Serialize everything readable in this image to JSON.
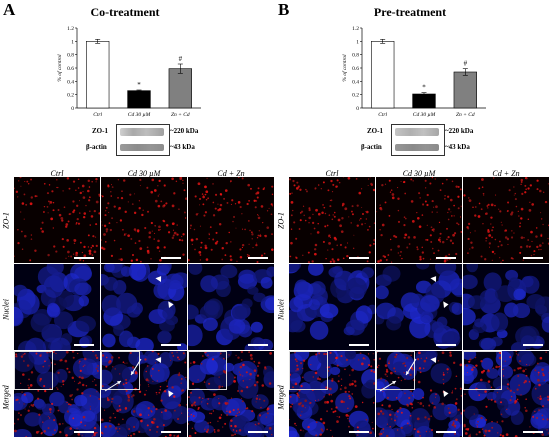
{
  "panels": [
    {
      "letter": "A",
      "title": "Co-treatment",
      "chart_data": {
        "type": "bar",
        "categories": [
          "Ctrl",
          "Cd 30 µM",
          "Zn + Cd"
        ],
        "values": [
          1.0,
          0.26,
          0.59
        ],
        "errors": [
          0.03,
          0.01,
          0.07
        ],
        "significance": [
          "",
          "*",
          "#"
        ],
        "ylabel": "% of control",
        "ylim": [
          0,
          1.2
        ],
        "yticks": [
          "0",
          "0.2",
          "0.4",
          "0.6",
          "0.8",
          "1",
          "1.2"
        ],
        "bar_colors": [
          "#ffffff",
          "#000000",
          "#808080"
        ]
      },
      "blot": {
        "rows": [
          {
            "label": "ZO-1",
            "size": "~220 kDa"
          },
          {
            "label": "β-actin",
            "size": "~43 kDa"
          }
        ]
      },
      "columns": [
        "Ctrl",
        "Cd 30 µM",
        "Cd + Zn"
      ],
      "rows": [
        "ZO-1",
        "Nuclei",
        "Merged"
      ]
    },
    {
      "letter": "B",
      "title": "Pre-treatment",
      "chart_data": {
        "type": "bar",
        "categories": [
          "Ctrl",
          "Cd 30 µM",
          "Zn + Cd"
        ],
        "values": [
          1.0,
          0.21,
          0.54
        ],
        "errors": [
          0.03,
          0.02,
          0.05
        ],
        "significance": [
          "",
          "*",
          "#"
        ],
        "ylabel": "% of control",
        "ylim": [
          0,
          1.2
        ],
        "yticks": [
          "0",
          "0.2",
          "0.4",
          "0.6",
          "0.8",
          "1",
          "1.2"
        ],
        "bar_colors": [
          "#ffffff",
          "#000000",
          "#808080"
        ]
      },
      "blot": {
        "rows": [
          {
            "label": "ZO-1",
            "size": "~220 kDa"
          },
          {
            "label": "β-actin",
            "size": "~43 kDa"
          }
        ]
      },
      "columns": [
        "Ctrl",
        "Cd 30 µM",
        "Cd + Zn"
      ],
      "rows": [
        "ZO-1",
        "Nuclei",
        "Merged"
      ]
    }
  ]
}
